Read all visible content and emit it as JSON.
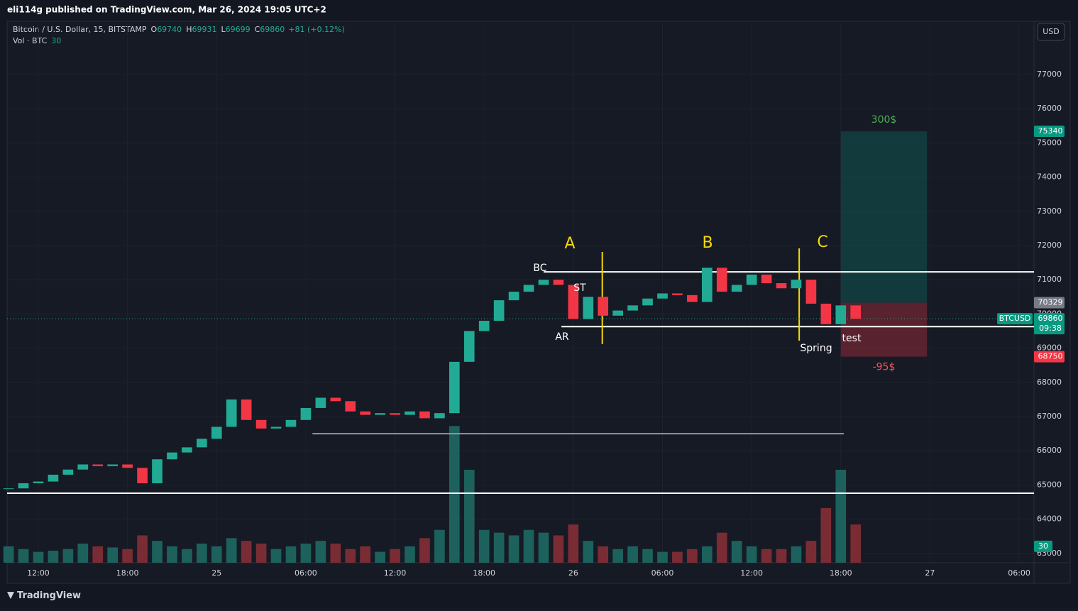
{
  "header": "eli114g published on TradingView.com, Mar 26, 2024 19:05 UTC+2",
  "legend": {
    "symbol": "Bitcoin / U.S. Dollar, 15, BITSTAMP",
    "o_label": "O",
    "o": 69740,
    "h_label": "H",
    "h": 69931,
    "l_label": "L",
    "l": 69699,
    "c_label": "C",
    "c": 69860,
    "change": "+81 (+0.12%)",
    "volume_label": "Vol · BTC",
    "volume": 30
  },
  "currency": "USD",
  "footer": "TradingView",
  "chart_data": {
    "type": "candlestick",
    "x": [
      10,
      11,
      12,
      13,
      14,
      15,
      16,
      17,
      18,
      19,
      20,
      21,
      22,
      23,
      24,
      25,
      26,
      27,
      28,
      29,
      30,
      31,
      32,
      33,
      34,
      35,
      36,
      37,
      38,
      39,
      40,
      41,
      42,
      43,
      44,
      45,
      46,
      47,
      48,
      49,
      50,
      51,
      52,
      53,
      54,
      55,
      56,
      57,
      58,
      59,
      60,
      61,
      62,
      63,
      64,
      65,
      66,
      67
    ],
    "values": [
      64900,
      65050,
      65100,
      65300,
      65450,
      65600,
      65550,
      65600,
      65500,
      65050,
      65750,
      65950,
      66100,
      66350,
      66700,
      67500,
      66900,
      66650,
      66700,
      66900,
      67250,
      67550,
      67450,
      67150,
      67050,
      67100,
      67050,
      67150,
      66950,
      67100,
      68600,
      69500,
      69800,
      70400,
      70650,
      70850,
      71000,
      70850,
      69850,
      70500,
      69950,
      70100,
      70250,
      70450,
      70600,
      70550,
      70350,
      71350,
      70650,
      70850,
      71150,
      70900,
      70750,
      71000,
      70300,
      69700,
      70250,
      69860
    ],
    "volume": [
      30,
      25,
      20,
      22,
      25,
      35,
      30,
      28,
      25,
      50,
      40,
      30,
      25,
      35,
      30,
      45,
      40,
      35,
      25,
      30,
      35,
      40,
      35,
      25,
      30,
      20,
      25,
      30,
      45,
      60,
      250,
      170,
      60,
      55,
      50,
      60,
      55,
      50,
      70,
      40,
      30,
      25,
      30,
      25,
      20,
      20,
      25,
      30,
      55,
      40,
      30,
      25,
      25,
      30,
      40,
      100,
      170,
      70
    ],
    "ylim": [
      62726,
      78556
    ],
    "volume_ylim": [
      0,
      990
    ],
    "xlim": [
      9.9,
      79.0
    ],
    "yticks": [
      63000,
      64000,
      65000,
      66000,
      67000,
      68000,
      69000,
      70000,
      71000,
      72000,
      73000,
      74000,
      75000,
      76000,
      77000
    ],
    "xticks": [
      {
        "value": 12,
        "label": "12:00"
      },
      {
        "value": 18,
        "label": "18:00"
      },
      {
        "value": 24,
        "label": "25"
      },
      {
        "value": 30,
        "label": "06:00"
      },
      {
        "value": 36,
        "label": "12:00"
      },
      {
        "value": 42,
        "label": "18:00"
      },
      {
        "value": 48,
        "label": "26"
      },
      {
        "value": 54,
        "label": "06:00"
      },
      {
        "value": 60,
        "label": "12:00"
      },
      {
        "value": 66,
        "label": "18:00"
      },
      {
        "value": 72,
        "label": "27"
      },
      {
        "value": 78,
        "label": "06:00"
      }
    ],
    "up_color": "#22ab94",
    "down_color": "#f23645",
    "levels": [
      71230,
      69630,
      64760,
      66500
    ],
    "last_price": 69860,
    "symbol": "BTCUSD",
    "countdown": "09:38",
    "position": {
      "entry": 70329,
      "target": 75340,
      "stop": 68750,
      "target_label": "300$",
      "stop_label": "-95$"
    },
    "annotations": [
      "A",
      "B",
      "C",
      "BC",
      "ST",
      "AR",
      "Spring",
      "test"
    ]
  }
}
